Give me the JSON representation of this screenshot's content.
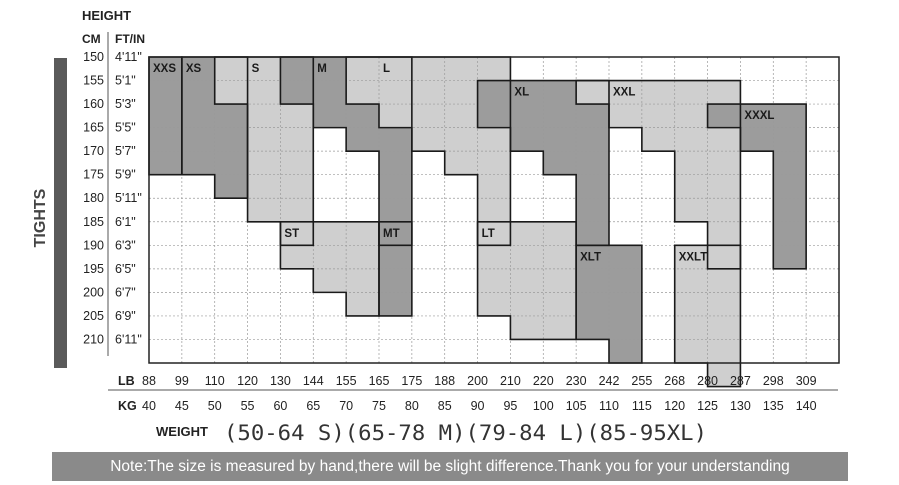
{
  "chart_data": {
    "type": "heatmap",
    "headers": {
      "height": "HEIGHT",
      "cm": "CM",
      "ftin": "FT/IN"
    },
    "side_label": "TIGHTS",
    "rows": [
      {
        "cm": "150",
        "ft": "4'11\""
      },
      {
        "cm": "155",
        "ft": "5'1\""
      },
      {
        "cm": "160",
        "ft": "5'3\""
      },
      {
        "cm": "165",
        "ft": "5'5\""
      },
      {
        "cm": "170",
        "ft": "5'7\""
      },
      {
        "cm": "175",
        "ft": "5'9\""
      },
      {
        "cm": "180",
        "ft": "5'11\""
      },
      {
        "cm": "185",
        "ft": "6'1\""
      },
      {
        "cm": "190",
        "ft": "6'3\""
      },
      {
        "cm": "195",
        "ft": "6'5\""
      },
      {
        "cm": "200",
        "ft": "6'7\""
      },
      {
        "cm": "205",
        "ft": "6'9\""
      },
      {
        "cm": "210",
        "ft": "6'11\""
      }
    ],
    "lb_label": "LB",
    "lb": [
      "88",
      "99",
      "110",
      "120",
      "130",
      "144",
      "155",
      "165",
      "175",
      "188",
      "200",
      "210",
      "220",
      "230",
      "242",
      "255",
      "268",
      "280",
      "287",
      "298",
      "309"
    ],
    "kg_label": "KG",
    "kg": [
      "40",
      "45",
      "50",
      "55",
      "60",
      "65",
      "70",
      "75",
      "80",
      "85",
      "90",
      "95",
      "100",
      "105",
      "110",
      "115",
      "120",
      "125",
      "130",
      "135",
      "140"
    ],
    "weight_label": "WEIGHT",
    "weight_ranges": "(50-64 S)(65-78 M)(79-84 L)(85-95XL)",
    "colors": {
      "dark": "#9c9c9c",
      "light": "#cfcfcf",
      "side_bar": "#5a5a5a",
      "note_bar": "#8a8a8a"
    },
    "sizes": [
      {
        "label": "XXS",
        "shade": "dark",
        "steps": [
          [
            0,
            4
          ]
        ]
      },
      {
        "label": "XS",
        "shade": "dark",
        "steps": [
          [
            1,
            4
          ],
          [
            2,
            5
          ]
        ]
      },
      {
        "label": "S",
        "shade": "light",
        "steps": [
          [
            2,
            1
          ],
          [
            3,
            6
          ],
          [
            4,
            7
          ]
        ]
      },
      {
        "label": "M",
        "shade": "dark",
        "steps": [
          [
            4,
            1
          ],
          [
            5,
            2
          ],
          [
            6,
            3
          ],
          [
            7,
            7
          ]
        ]
      },
      {
        "label": "L",
        "shade": "light",
        "steps": [
          [
            6,
            1
          ],
          [
            7,
            2
          ],
          [
            8,
            3
          ],
          [
            9,
            4
          ],
          [
            10,
            7
          ]
        ]
      },
      {
        "label": "XL",
        "shade": "dark",
        "steps": [
          [
            10,
            2
          ],
          [
            11,
            3
          ],
          [
            12,
            4
          ],
          [
            13,
            7
          ]
        ]
      },
      {
        "label": "XXL",
        "shade": "light",
        "steps": [
          [
            13,
            1
          ],
          [
            14,
            2
          ],
          [
            15,
            3
          ],
          [
            16,
            6
          ],
          [
            17,
            8
          ]
        ]
      },
      {
        "label": "XXXL",
        "shade": "dark",
        "steps": [
          [
            17,
            2
          ],
          [
            18,
            3
          ],
          [
            19,
            8
          ]
        ]
      },
      {
        "label": "ST",
        "shade": "light",
        "steps": [
          [
            4,
            8
          ],
          [
            5,
            9
          ],
          [
            6,
            10
          ]
        ]
      },
      {
        "label": "MT",
        "shade": "dark",
        "steps": [
          [
            7,
            10
          ]
        ]
      },
      {
        "label": "LT",
        "shade": "light",
        "steps": [
          [
            10,
            10
          ],
          [
            11,
            11
          ],
          [
            12,
            11
          ]
        ]
      },
      {
        "label": "XLT",
        "shade": "dark",
        "steps": [
          [
            13,
            11
          ],
          [
            14,
            12
          ]
        ]
      },
      {
        "label": "XXLT",
        "shade": "light",
        "steps": [
          [
            16,
            12
          ],
          [
            17,
            13
          ]
        ]
      }
    ],
    "size_label_cells": {
      "XXS": [
        0,
        0
      ],
      "XS": [
        1,
        0
      ],
      "S": [
        3,
        0
      ],
      "M": [
        5,
        0
      ],
      "L": [
        7,
        0
      ],
      "XL": [
        11,
        1
      ],
      "XXL": [
        14,
        1
      ],
      "XXXL": [
        18,
        2
      ],
      "ST": [
        4,
        7
      ],
      "MT": [
        7,
        7
      ],
      "LT": [
        10,
        7
      ],
      "XLT": [
        13,
        8
      ],
      "XXLT": [
        16,
        8
      ]
    },
    "grid": true
  },
  "note": "Note:The size is measured by hand,there will be slight difference.Thank you for your understanding"
}
